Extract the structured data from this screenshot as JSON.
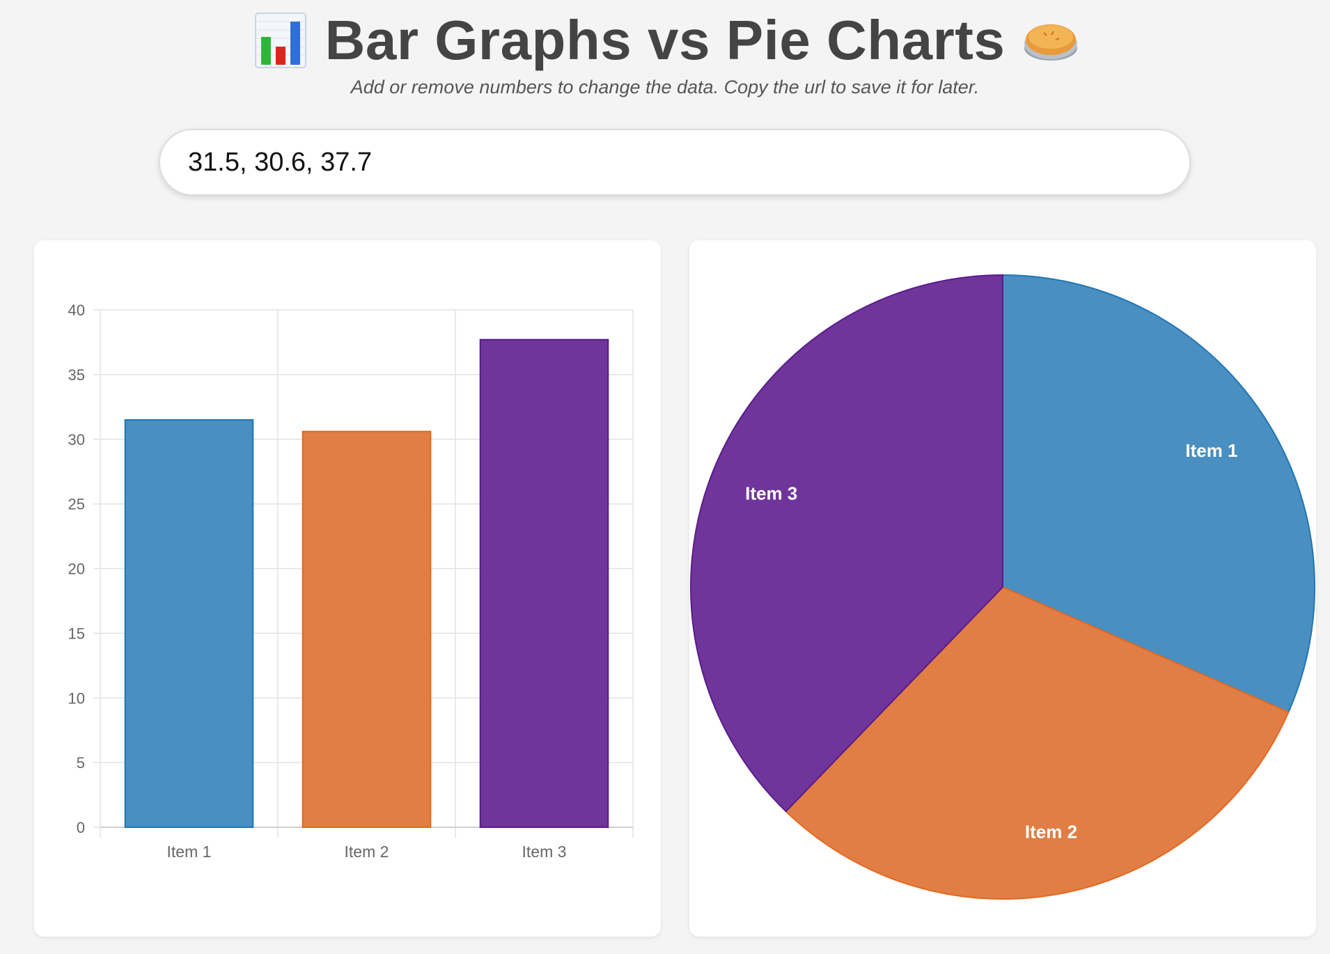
{
  "header": {
    "title": "Bar Graphs vs Pie Charts",
    "left_icon": "bar-chart-emoji",
    "right_icon": "pie-emoji",
    "subtitle": "Add or remove numbers to change the data. Copy the url to save it for later."
  },
  "data_input": {
    "value": "31.5, 30.6, 37.7"
  },
  "colors": {
    "item1": "#4a8fc2",
    "item1_border": "#1f77b4",
    "item2": "#e07e45",
    "item2_border": "#e8661c",
    "item3": "#70359a",
    "item3_border": "#5a1c8a"
  },
  "chart_data": [
    {
      "type": "bar",
      "categories": [
        "Item 1",
        "Item 2",
        "Item 3"
      ],
      "values": [
        31.5,
        30.6,
        37.7
      ],
      "ylim": [
        0,
        40
      ],
      "yticks": [
        0,
        5,
        10,
        15,
        20,
        25,
        30,
        35,
        40
      ],
      "grid": true,
      "title": "",
      "xlabel": "",
      "ylabel": ""
    },
    {
      "type": "pie",
      "labels": [
        "Item 1",
        "Item 2",
        "Item 3"
      ],
      "values": [
        31.5,
        30.6,
        37.7
      ],
      "title": ""
    }
  ]
}
